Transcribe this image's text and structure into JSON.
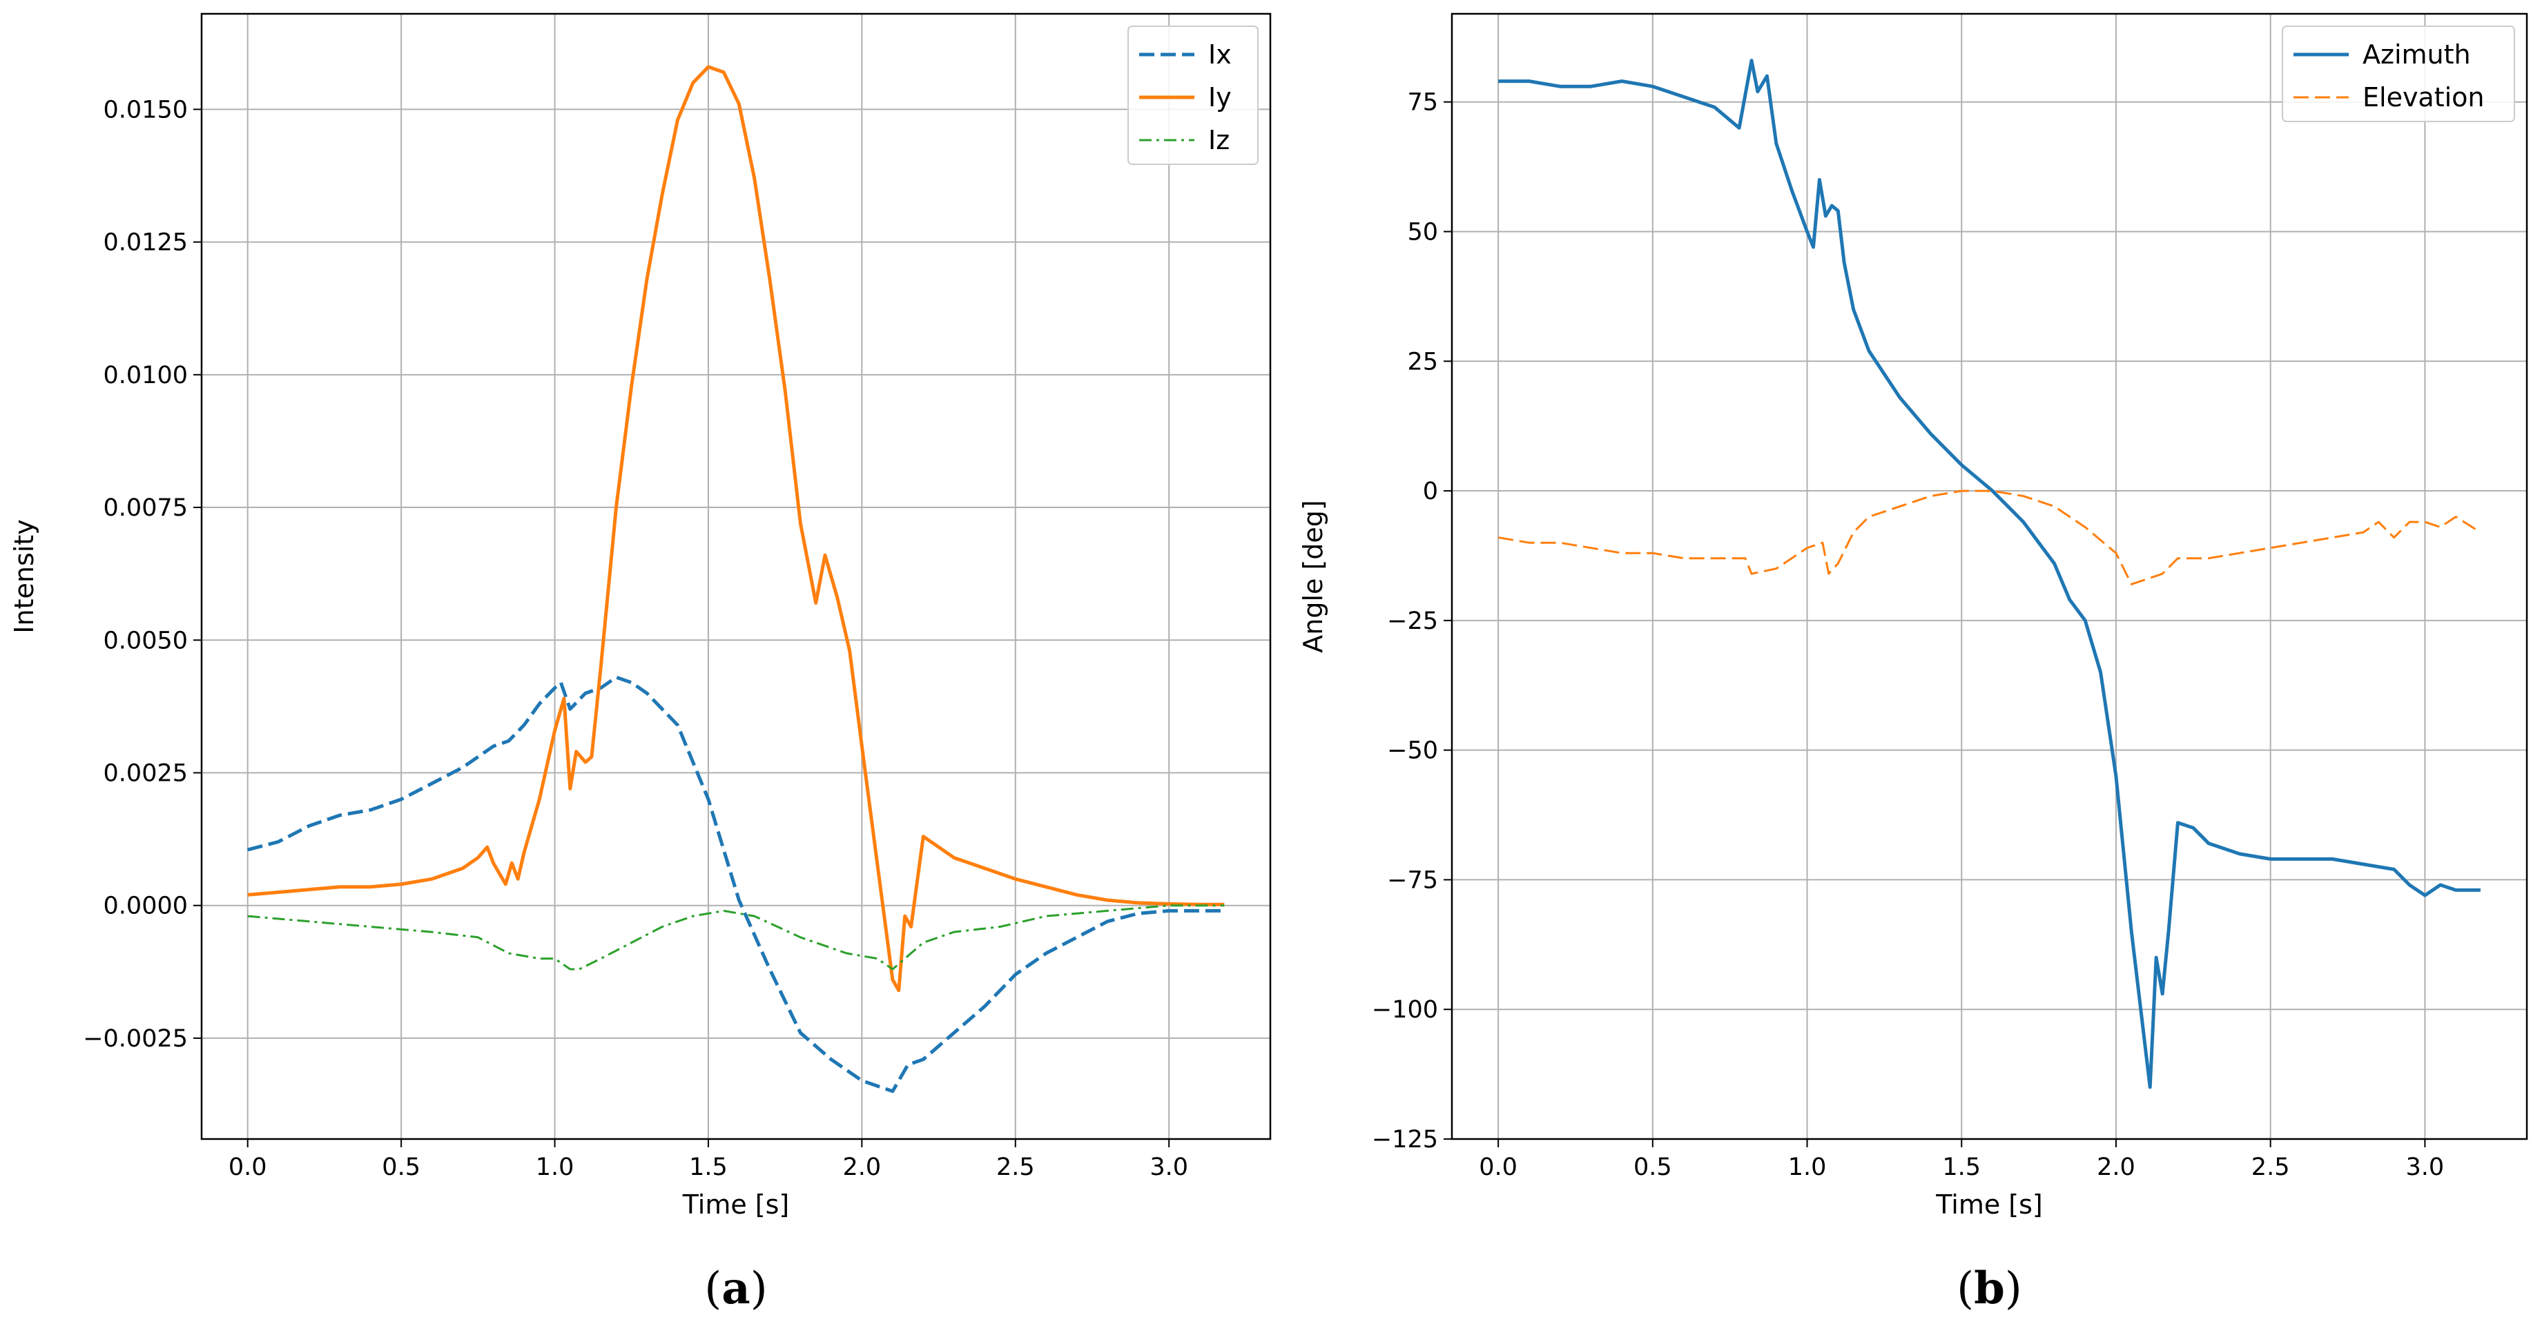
{
  "chart_data": [
    {
      "type": "line",
      "caption_open": "(",
      "caption_letter": "a",
      "caption_close": ")",
      "xlabel": "Time [s]",
      "ylabel": "Intensity",
      "xlim": [
        -0.15,
        3.33
      ],
      "ylim": [
        -0.0044,
        0.0168
      ],
      "xticks": [
        0.0,
        0.5,
        1.0,
        1.5,
        2.0,
        2.5,
        3.0
      ],
      "xtick_labels": [
        "0.0",
        "0.5",
        "1.0",
        "1.5",
        "2.0",
        "2.5",
        "3.0"
      ],
      "yticks": [
        -0.0025,
        0.0,
        0.0025,
        0.005,
        0.0075,
        0.01,
        0.0125,
        0.015
      ],
      "ytick_labels": [
        "−0.0025",
        "0.0000",
        "0.0025",
        "0.0050",
        "0.0075",
        "0.0100",
        "0.0125",
        "0.0150"
      ],
      "grid": true,
      "legend_position": "top-right",
      "series": [
        {
          "name": "Ix",
          "color": "#1f77b4",
          "style": "dashed",
          "points": [
            [
              0.0,
              0.00105
            ],
            [
              0.1,
              0.0012
            ],
            [
              0.2,
              0.0015
            ],
            [
              0.3,
              0.0017
            ],
            [
              0.4,
              0.0018
            ],
            [
              0.5,
              0.002
            ],
            [
              0.6,
              0.0023
            ],
            [
              0.7,
              0.0026
            ],
            [
              0.8,
              0.003
            ],
            [
              0.85,
              0.0031
            ],
            [
              0.9,
              0.0034
            ],
            [
              0.95,
              0.0038
            ],
            [
              1.0,
              0.0041
            ],
            [
              1.02,
              0.0042
            ],
            [
              1.05,
              0.0037
            ],
            [
              1.1,
              0.004
            ],
            [
              1.15,
              0.0041
            ],
            [
              1.2,
              0.0043
            ],
            [
              1.25,
              0.0042
            ],
            [
              1.3,
              0.004
            ],
            [
              1.4,
              0.0034
            ],
            [
              1.5,
              0.002
            ],
            [
              1.6,
              0.0001
            ],
            [
              1.7,
              -0.0012
            ],
            [
              1.8,
              -0.0024
            ],
            [
              1.9,
              -0.0029
            ],
            [
              2.0,
              -0.0033
            ],
            [
              2.1,
              -0.0035
            ],
            [
              2.15,
              -0.003
            ],
            [
              2.2,
              -0.0029
            ],
            [
              2.3,
              -0.0024
            ],
            [
              2.4,
              -0.0019
            ],
            [
              2.5,
              -0.0013
            ],
            [
              2.6,
              -0.0009
            ],
            [
              2.7,
              -0.0006
            ],
            [
              2.8,
              -0.0003
            ],
            [
              2.9,
              -0.00015
            ],
            [
              3.0,
              -0.0001
            ],
            [
              3.1,
              -0.0001
            ],
            [
              3.18,
              -0.0001
            ]
          ]
        },
        {
          "name": "Iy",
          "color": "#ff7f0e",
          "style": "solid",
          "points": [
            [
              0.0,
              0.0002
            ],
            [
              0.1,
              0.00025
            ],
            [
              0.2,
              0.0003
            ],
            [
              0.3,
              0.00035
            ],
            [
              0.4,
              0.00035
            ],
            [
              0.5,
              0.0004
            ],
            [
              0.6,
              0.0005
            ],
            [
              0.7,
              0.0007
            ],
            [
              0.75,
              0.0009
            ],
            [
              0.78,
              0.0011
            ],
            [
              0.8,
              0.0008
            ],
            [
              0.82,
              0.0006
            ],
            [
              0.84,
              0.0004
            ],
            [
              0.86,
              0.0008
            ],
            [
              0.88,
              0.0005
            ],
            [
              0.9,
              0.001
            ],
            [
              0.95,
              0.002
            ],
            [
              1.0,
              0.0033
            ],
            [
              1.03,
              0.0039
            ],
            [
              1.05,
              0.0022
            ],
            [
              1.07,
              0.0029
            ],
            [
              1.1,
              0.0027
            ],
            [
              1.12,
              0.0028
            ],
            [
              1.15,
              0.0045
            ],
            [
              1.2,
              0.0075
            ],
            [
              1.25,
              0.0098
            ],
            [
              1.3,
              0.0118
            ],
            [
              1.35,
              0.0134
            ],
            [
              1.4,
              0.0148
            ],
            [
              1.45,
              0.0155
            ],
            [
              1.5,
              0.0158
            ],
            [
              1.55,
              0.0157
            ],
            [
              1.6,
              0.0151
            ],
            [
              1.65,
              0.0137
            ],
            [
              1.7,
              0.0118
            ],
            [
              1.75,
              0.0097
            ],
            [
              1.8,
              0.0072
            ],
            [
              1.85,
              0.0057
            ],
            [
              1.88,
              0.0066
            ],
            [
              1.92,
              0.0058
            ],
            [
              1.96,
              0.0048
            ],
            [
              2.0,
              0.003
            ],
            [
              2.05,
              0.0008
            ],
            [
              2.1,
              -0.0014
            ],
            [
              2.12,
              -0.0016
            ],
            [
              2.14,
              -0.0002
            ],
            [
              2.16,
              -0.0004
            ],
            [
              2.2,
              0.0013
            ],
            [
              2.25,
              0.0011
            ],
            [
              2.3,
              0.0009
            ],
            [
              2.4,
              0.0007
            ],
            [
              2.5,
              0.0005
            ],
            [
              2.6,
              0.00035
            ],
            [
              2.7,
              0.0002
            ],
            [
              2.8,
              0.0001
            ],
            [
              2.9,
              5e-05
            ],
            [
              3.0,
              3e-05
            ],
            [
              3.1,
              2e-05
            ],
            [
              3.18,
              2e-05
            ]
          ]
        },
        {
          "name": "Iz",
          "color": "#2ca02c",
          "style": "dashdot",
          "points": [
            [
              0.0,
              -0.0002
            ],
            [
              0.2,
              -0.0003
            ],
            [
              0.4,
              -0.0004
            ],
            [
              0.6,
              -0.0005
            ],
            [
              0.75,
              -0.0006
            ],
            [
              0.85,
              -0.0009
            ],
            [
              0.95,
              -0.001
            ],
            [
              1.0,
              -0.001
            ],
            [
              1.05,
              -0.0012
            ],
            [
              1.08,
              -0.0012
            ],
            [
              1.15,
              -0.001
            ],
            [
              1.25,
              -0.0007
            ],
            [
              1.35,
              -0.0004
            ],
            [
              1.45,
              -0.0002
            ],
            [
              1.55,
              -0.0001
            ],
            [
              1.65,
              -0.0002
            ],
            [
              1.8,
              -0.0006
            ],
            [
              1.95,
              -0.0009
            ],
            [
              2.05,
              -0.001
            ],
            [
              2.1,
              -0.0012
            ],
            [
              2.2,
              -0.0007
            ],
            [
              2.3,
              -0.0005
            ],
            [
              2.45,
              -0.0004
            ],
            [
              2.6,
              -0.0002
            ],
            [
              2.8,
              -0.0001
            ],
            [
              3.0,
              0.0
            ],
            [
              3.18,
              0.0
            ]
          ]
        }
      ]
    },
    {
      "type": "line",
      "caption_open": "(",
      "caption_letter": "b",
      "caption_close": ")",
      "xlabel": "Time [s]",
      "ylabel": "Angle [deg]",
      "xlim": [
        -0.15,
        3.33
      ],
      "ylim": [
        -125,
        92
      ],
      "xticks": [
        0.0,
        0.5,
        1.0,
        1.5,
        2.0,
        2.5,
        3.0
      ],
      "xtick_labels": [
        "0.0",
        "0.5",
        "1.0",
        "1.5",
        "2.0",
        "2.5",
        "3.0"
      ],
      "yticks": [
        -125,
        -100,
        -75,
        -50,
        -25,
        0,
        25,
        50,
        75
      ],
      "ytick_labels": [
        "−125",
        "−100",
        "−75",
        "−50",
        "−25",
        "0",
        "25",
        "50",
        "75"
      ],
      "grid": true,
      "legend_position": "top-right",
      "series": [
        {
          "name": "Azimuth",
          "color": "#1f77b4",
          "style": "solid",
          "points": [
            [
              0.0,
              79
            ],
            [
              0.1,
              79
            ],
            [
              0.2,
              78
            ],
            [
              0.3,
              78
            ],
            [
              0.4,
              79
            ],
            [
              0.5,
              78
            ],
            [
              0.6,
              76
            ],
            [
              0.7,
              74
            ],
            [
              0.78,
              70
            ],
            [
              0.82,
              83
            ],
            [
              0.84,
              77
            ],
            [
              0.87,
              80
            ],
            [
              0.9,
              67
            ],
            [
              0.95,
              58
            ],
            [
              1.0,
              50
            ],
            [
              1.02,
              47
            ],
            [
              1.04,
              60
            ],
            [
              1.06,
              53
            ],
            [
              1.08,
              55
            ],
            [
              1.1,
              54
            ],
            [
              1.12,
              44
            ],
            [
              1.15,
              35
            ],
            [
              1.2,
              27
            ],
            [
              1.3,
              18
            ],
            [
              1.4,
              11
            ],
            [
              1.5,
              5
            ],
            [
              1.6,
              0
            ],
            [
              1.7,
              -6
            ],
            [
              1.75,
              -10
            ],
            [
              1.8,
              -14
            ],
            [
              1.85,
              -21
            ],
            [
              1.9,
              -25
            ],
            [
              1.95,
              -35
            ],
            [
              2.0,
              -55
            ],
            [
              2.05,
              -85
            ],
            [
              2.1,
              -110
            ],
            [
              2.11,
              -115
            ],
            [
              2.13,
              -90
            ],
            [
              2.15,
              -97
            ],
            [
              2.17,
              -85
            ],
            [
              2.2,
              -64
            ],
            [
              2.25,
              -65
            ],
            [
              2.3,
              -68
            ],
            [
              2.4,
              -70
            ],
            [
              2.5,
              -71
            ],
            [
              2.6,
              -71
            ],
            [
              2.7,
              -71
            ],
            [
              2.8,
              -72
            ],
            [
              2.9,
              -73
            ],
            [
              2.95,
              -76
            ],
            [
              3.0,
              -78
            ],
            [
              3.05,
              -76
            ],
            [
              3.1,
              -77
            ],
            [
              3.18,
              -77
            ]
          ]
        },
        {
          "name": "Elevation",
          "color": "#ff7f0e",
          "style": "dashed",
          "points": [
            [
              0.0,
              -9
            ],
            [
              0.1,
              -10
            ],
            [
              0.2,
              -10
            ],
            [
              0.3,
              -11
            ],
            [
              0.4,
              -12
            ],
            [
              0.5,
              -12
            ],
            [
              0.6,
              -13
            ],
            [
              0.7,
              -13
            ],
            [
              0.8,
              -13
            ],
            [
              0.82,
              -16
            ],
            [
              0.9,
              -15
            ],
            [
              1.0,
              -11
            ],
            [
              1.05,
              -10
            ],
            [
              1.07,
              -16
            ],
            [
              1.1,
              -14
            ],
            [
              1.15,
              -8
            ],
            [
              1.2,
              -5
            ],
            [
              1.3,
              -3
            ],
            [
              1.4,
              -1
            ],
            [
              1.5,
              0
            ],
            [
              1.6,
              0
            ],
            [
              1.7,
              -1
            ],
            [
              1.8,
              -3
            ],
            [
              1.9,
              -7
            ],
            [
              2.0,
              -12
            ],
            [
              2.05,
              -18
            ],
            [
              2.1,
              -17
            ],
            [
              2.15,
              -16
            ],
            [
              2.2,
              -13
            ],
            [
              2.3,
              -13
            ],
            [
              2.4,
              -12
            ],
            [
              2.5,
              -11
            ],
            [
              2.6,
              -10
            ],
            [
              2.7,
              -9
            ],
            [
              2.8,
              -8
            ],
            [
              2.85,
              -6
            ],
            [
              2.9,
              -9
            ],
            [
              2.95,
              -6
            ],
            [
              3.0,
              -6
            ],
            [
              3.05,
              -7
            ],
            [
              3.1,
              -5
            ],
            [
              3.18,
              -8
            ]
          ]
        }
      ]
    }
  ]
}
